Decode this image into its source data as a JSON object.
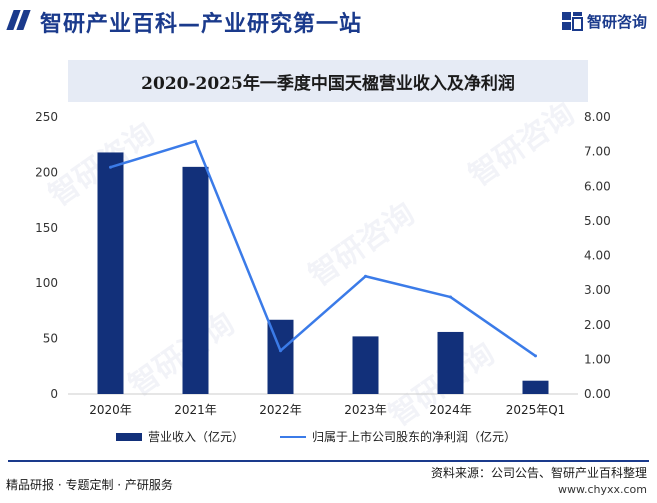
{
  "header": {
    "title": "智研产业百科—产业研究第一站",
    "brand": "智研咨询"
  },
  "colors": {
    "bar": "#12307a",
    "line": "#3b7be8",
    "accent": "#1a3a8c"
  },
  "chart_data": {
    "type": "bar",
    "title": "2020-2025年一季度中国天楹营业收入及净利润",
    "categories": [
      "2020年",
      "2021年",
      "2022年",
      "2023年",
      "2024年",
      "2025年Q1"
    ],
    "series": [
      {
        "name": "营业收入（亿元）",
        "type": "bar",
        "axis": "left",
        "values": [
          218,
          205,
          67,
          52,
          56,
          12
        ]
      },
      {
        "name": "归属于上市公司股东的净利润（亿元）",
        "type": "line",
        "axis": "right",
        "values": [
          6.55,
          7.3,
          1.25,
          3.4,
          2.8,
          1.1
        ]
      }
    ],
    "ylim_left": [
      0,
      250
    ],
    "yticks_left": [
      "0",
      "50",
      "100",
      "150",
      "200",
      "250"
    ],
    "ylim_right": [
      0,
      8
    ],
    "yticks_right": [
      "0.00",
      "1.00",
      "2.00",
      "3.00",
      "4.00",
      "5.00",
      "6.00",
      "7.00",
      "8.00"
    ],
    "legend": "bottom"
  },
  "footer": {
    "left": "精品研报 · 专题定制 · 产研服务",
    "source": "资料来源：公司公告、智研产业百科整理",
    "url": "www.chyxx.com"
  }
}
